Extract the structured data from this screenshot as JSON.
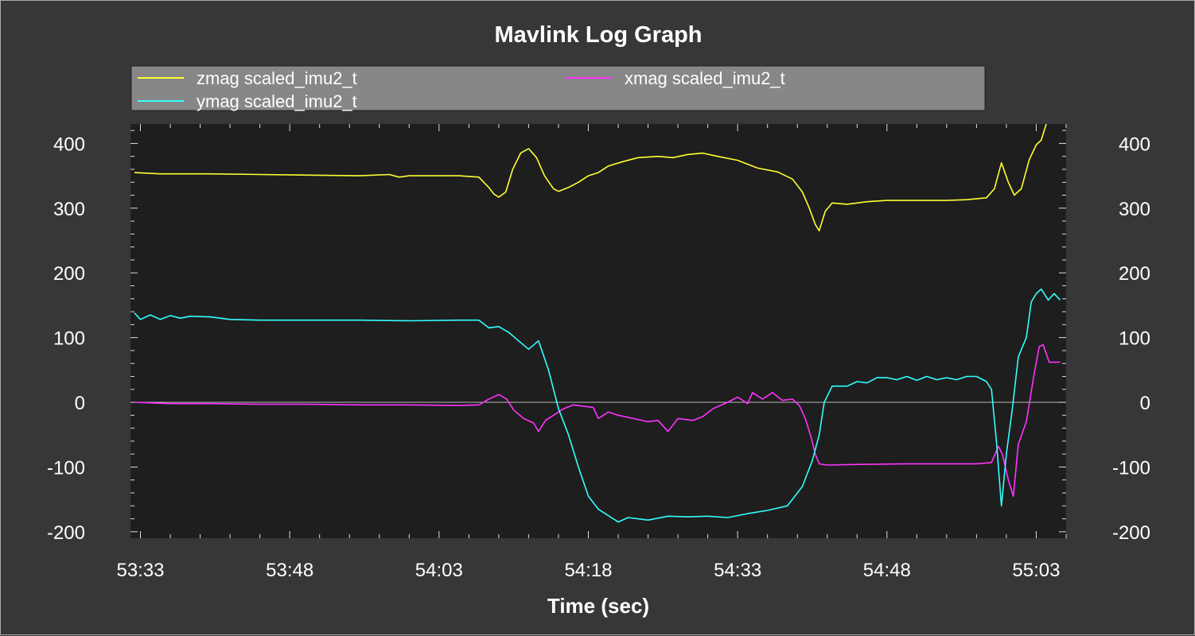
{
  "chart_data": {
    "type": "line",
    "title": "Mavlink Log Graph",
    "xlabel": "Time (sec)",
    "ylabel": "",
    "xlim": [
      3212,
      3306
    ],
    "ylim": [
      -210,
      430
    ],
    "x_ticks": [
      {
        "value": 3213,
        "label": "53:33"
      },
      {
        "value": 3228,
        "label": "53:48"
      },
      {
        "value": 3243,
        "label": "54:03"
      },
      {
        "value": 3258,
        "label": "54:18"
      },
      {
        "value": 3273,
        "label": "54:33"
      },
      {
        "value": 3288,
        "label": "54:48"
      },
      {
        "value": 3303,
        "label": "55:03"
      }
    ],
    "y_ticks": [
      {
        "value": 400,
        "label": "400"
      },
      {
        "value": 300,
        "label": "300"
      },
      {
        "value": 200,
        "label": "200"
      },
      {
        "value": 100,
        "label": "100"
      },
      {
        "value": 0,
        "label": "0"
      },
      {
        "value": -100,
        "label": "-100"
      },
      {
        "value": -200,
        "label": "-200"
      }
    ],
    "legend": "top",
    "grid": false,
    "series": [
      {
        "name": "zmag scaled_imu2_t",
        "color": "#ffff33",
        "points": [
          [
            3212.4,
            355
          ],
          [
            3215,
            353
          ],
          [
            3220,
            353
          ],
          [
            3225,
            352
          ],
          [
            3230,
            351
          ],
          [
            3235,
            350
          ],
          [
            3238,
            352
          ],
          [
            3239,
            348
          ],
          [
            3240,
            350
          ],
          [
            3245,
            350
          ],
          [
            3247,
            348
          ],
          [
            3248,
            332
          ],
          [
            3248.5,
            322
          ],
          [
            3249,
            317
          ],
          [
            3249.7,
            325
          ],
          [
            3250.4,
            360
          ],
          [
            3251.2,
            385
          ],
          [
            3252,
            392
          ],
          [
            3252.8,
            378
          ],
          [
            3253.6,
            350
          ],
          [
            3254.5,
            330
          ],
          [
            3255,
            326
          ],
          [
            3256,
            332
          ],
          [
            3257,
            340
          ],
          [
            3258,
            350
          ],
          [
            3259,
            355
          ],
          [
            3260,
            365
          ],
          [
            3261.5,
            372
          ],
          [
            3263,
            378
          ],
          [
            3265,
            380
          ],
          [
            3266.5,
            378
          ],
          [
            3268,
            383
          ],
          [
            3269.5,
            385
          ],
          [
            3271,
            380
          ],
          [
            3273,
            374
          ],
          [
            3275,
            362
          ],
          [
            3277,
            356
          ],
          [
            3278.5,
            345
          ],
          [
            3279.5,
            325
          ],
          [
            3280.2,
            300
          ],
          [
            3280.8,
            275
          ],
          [
            3281.2,
            265
          ],
          [
            3281.8,
            295
          ],
          [
            3282.5,
            308
          ],
          [
            3284,
            306
          ],
          [
            3286,
            310
          ],
          [
            3288,
            312
          ],
          [
            3290,
            312
          ],
          [
            3292,
            312
          ],
          [
            3294,
            312
          ],
          [
            3296,
            313
          ],
          [
            3298,
            316
          ],
          [
            3298.8,
            330
          ],
          [
            3299.5,
            370
          ],
          [
            3300.2,
            340
          ],
          [
            3300.8,
            320
          ],
          [
            3301.5,
            330
          ],
          [
            3302.3,
            375
          ],
          [
            3303,
            398
          ],
          [
            3303.5,
            405
          ],
          [
            3304,
            430
          ]
        ]
      },
      {
        "name": "xmag scaled_imu2_t",
        "color": "#ff33ff",
        "points": [
          [
            3212.4,
            0
          ],
          [
            3216,
            -2
          ],
          [
            3220,
            -2
          ],
          [
            3225,
            -3
          ],
          [
            3230,
            -3
          ],
          [
            3235,
            -4
          ],
          [
            3240,
            -4
          ],
          [
            3245,
            -5
          ],
          [
            3247,
            -4
          ],
          [
            3248,
            5
          ],
          [
            3249,
            12
          ],
          [
            3249.8,
            5
          ],
          [
            3250.5,
            -12
          ],
          [
            3251.5,
            -25
          ],
          [
            3252.5,
            -32
          ],
          [
            3253,
            -45
          ],
          [
            3253.7,
            -28
          ],
          [
            3254.5,
            -20
          ],
          [
            3255.5,
            -10
          ],
          [
            3256.5,
            -4
          ],
          [
            3257.5,
            -6
          ],
          [
            3258.5,
            -8
          ],
          [
            3259,
            -25
          ],
          [
            3260,
            -15
          ],
          [
            3261,
            -20
          ],
          [
            3262.5,
            -25
          ],
          [
            3264,
            -30
          ],
          [
            3265,
            -28
          ],
          [
            3266,
            -45
          ],
          [
            3267,
            -25
          ],
          [
            3268.5,
            -28
          ],
          [
            3269.5,
            -22
          ],
          [
            3270.5,
            -10
          ],
          [
            3272,
            0
          ],
          [
            3273,
            8
          ],
          [
            3274,
            -2
          ],
          [
            3274.5,
            15
          ],
          [
            3275.5,
            5
          ],
          [
            3276.5,
            15
          ],
          [
            3277.5,
            3
          ],
          [
            3278.5,
            5
          ],
          [
            3279.2,
            -5
          ],
          [
            3279.8,
            -25
          ],
          [
            3280.4,
            -55
          ],
          [
            3280.8,
            -80
          ],
          [
            3281.2,
            -95
          ],
          [
            3282,
            -97
          ],
          [
            3285,
            -96
          ],
          [
            3290,
            -95
          ],
          [
            3295,
            -95
          ],
          [
            3297,
            -95
          ],
          [
            3298.5,
            -93
          ],
          [
            3299.2,
            -68
          ],
          [
            3299.6,
            -80
          ],
          [
            3300.2,
            -120
          ],
          [
            3300.7,
            -145
          ],
          [
            3301.2,
            -65
          ],
          [
            3302,
            -30
          ],
          [
            3302.8,
            45
          ],
          [
            3303.3,
            86
          ],
          [
            3303.7,
            89
          ],
          [
            3304.3,
            62
          ],
          [
            3305,
            62
          ],
          [
            3305.4,
            62
          ]
        ]
      },
      {
        "name": "ymag scaled_imu2_t",
        "color": "#33ffff",
        "points": [
          [
            3212.4,
            138
          ],
          [
            3213,
            128
          ],
          [
            3214,
            135
          ],
          [
            3215,
            128
          ],
          [
            3216,
            134
          ],
          [
            3217,
            130
          ],
          [
            3218,
            133
          ],
          [
            3220,
            132
          ],
          [
            3222,
            128
          ],
          [
            3225,
            127
          ],
          [
            3230,
            127
          ],
          [
            3235,
            127
          ],
          [
            3240,
            126
          ],
          [
            3245,
            127
          ],
          [
            3247,
            127
          ],
          [
            3248,
            115
          ],
          [
            3249,
            117
          ],
          [
            3250,
            108
          ],
          [
            3251,
            95
          ],
          [
            3252,
            82
          ],
          [
            3253,
            95
          ],
          [
            3254,
            50
          ],
          [
            3255,
            -10
          ],
          [
            3256,
            -50
          ],
          [
            3257,
            -100
          ],
          [
            3258,
            -145
          ],
          [
            3259,
            -165
          ],
          [
            3260,
            -175
          ],
          [
            3261,
            -185
          ],
          [
            3262,
            -178
          ],
          [
            3264,
            -182
          ],
          [
            3266,
            -176
          ],
          [
            3268,
            -177
          ],
          [
            3270,
            -176
          ],
          [
            3272,
            -178
          ],
          [
            3274,
            -172
          ],
          [
            3276,
            -167
          ],
          [
            3278,
            -160
          ],
          [
            3279.5,
            -130
          ],
          [
            3280.5,
            -90
          ],
          [
            3281.2,
            -50
          ],
          [
            3281.7,
            0
          ],
          [
            3282.5,
            25
          ],
          [
            3284,
            25
          ],
          [
            3285,
            32
          ],
          [
            3286,
            30
          ],
          [
            3287,
            38
          ],
          [
            3288,
            38
          ],
          [
            3289,
            35
          ],
          [
            3290,
            40
          ],
          [
            3291,
            34
          ],
          [
            3292,
            40
          ],
          [
            3293,
            35
          ],
          [
            3294,
            38
          ],
          [
            3295,
            35
          ],
          [
            3296,
            40
          ],
          [
            3297,
            40
          ],
          [
            3298,
            32
          ],
          [
            3298.5,
            20
          ],
          [
            3299,
            -60
          ],
          [
            3299.5,
            -160
          ],
          [
            3300,
            -80
          ],
          [
            3300.6,
            -10
          ],
          [
            3301.2,
            70
          ],
          [
            3302,
            100
          ],
          [
            3302.5,
            155
          ],
          [
            3303,
            168
          ],
          [
            3303.5,
            175
          ],
          [
            3304.2,
            158
          ],
          [
            3304.8,
            168
          ],
          [
            3305.4,
            158
          ]
        ]
      }
    ]
  }
}
